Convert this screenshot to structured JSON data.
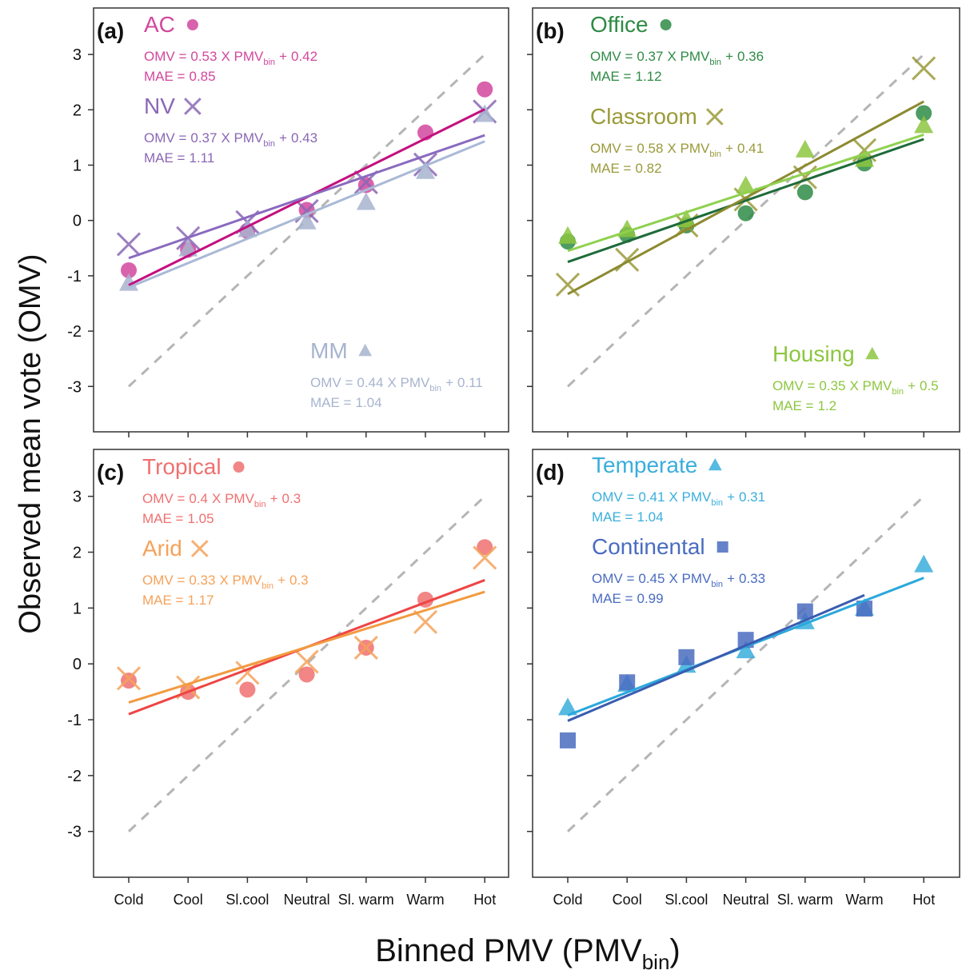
{
  "figure": {
    "ylabel": "Observed mean vote (OMV)",
    "xlabel": "Binned PMV (PMV",
    "xlabel_sub": "bin",
    "xlabel_end": ")",
    "equation": {
      "lhs": "OMV =",
      "times": "X PMV",
      "sub": "bin",
      "plus": "+",
      "mae": "MAE ="
    }
  },
  "chart_data": [
    {
      "type": "scatter",
      "title": "(a)",
      "categories": [
        "Cold",
        "Cool",
        "Sl.cool",
        "Neutral",
        "Sl. warm",
        "Warm",
        "Hot"
      ],
      "ylim": [
        -3.82,
        3.84
      ],
      "yticks": [
        -3,
        -2,
        -1,
        0,
        1,
        2,
        3
      ],
      "show_ytick_labels": true,
      "show_xtick_labels": false,
      "reference_line": {
        "values": [
          -3,
          3
        ],
        "color": "#b5b5b5"
      },
      "series": [
        {
          "name": "AC",
          "marker": "circle",
          "color": "#d2479d",
          "line_color": "#c4107f",
          "slope": 0.53,
          "intercept": 0.42,
          "mae": 0.85,
          "values": [
            -0.9,
            -0.53,
            -0.19,
            0.19,
            0.64,
            1.59,
            2.37
          ]
        },
        {
          "name": "NV",
          "marker": "x",
          "color": "#8a67b5",
          "line_color": "#8a6abf",
          "slope": 0.37,
          "intercept": 0.43,
          "mae": 1.11,
          "values": [
            -0.43,
            -0.32,
            -0.03,
            0.17,
            0.69,
            1.01,
            1.97
          ]
        },
        {
          "name": "MM",
          "marker": "triangle",
          "color": "#a7b4cf",
          "line_color": "#a9b9d6",
          "slope": 0.44,
          "intercept": 0.11,
          "mae": 1.04,
          "values": [
            -1.14,
            -0.52,
            -0.17,
            -0.03,
            0.32,
            0.88,
            1.91
          ]
        }
      ]
    },
    {
      "type": "scatter",
      "title": "(b)",
      "categories": [
        "Cold",
        "Cool",
        "Sl.cool",
        "Neutral",
        "Sl. warm",
        "Warm",
        "Hot"
      ],
      "ylim": [
        -3.82,
        3.84
      ],
      "yticks": [
        -3,
        -2,
        -1,
        0,
        1,
        2,
        3
      ],
      "show_ytick_labels": false,
      "show_xtick_labels": false,
      "reference_line": {
        "values": [
          -3,
          3
        ],
        "color": "#b5b5b5"
      },
      "series": [
        {
          "name": "Office",
          "marker": "circle",
          "color": "#2e8b45",
          "line_color": "#1e6b3a",
          "slope": 0.37,
          "intercept": 0.36,
          "mae": 1.12,
          "values": [
            -0.38,
            -0.26,
            -0.09,
            0.13,
            0.51,
            1.03,
            1.94
          ]
        },
        {
          "name": "Classroom",
          "marker": "x",
          "color": "#9a9a3a",
          "line_color": "#8c8a30",
          "slope": 0.58,
          "intercept": 0.41,
          "mae": 0.82,
          "values": [
            -1.16,
            -0.71,
            -0.09,
            0.38,
            0.78,
            1.27,
            2.75
          ]
        },
        {
          "name": "Housing",
          "marker": "triangle",
          "color": "#8dc63f",
          "line_color": "#8fd14f",
          "slope": 0.35,
          "intercept": 0.5,
          "mae": 1.2,
          "values": [
            -0.29,
            -0.17,
            0.01,
            0.62,
            1.27,
            1.1,
            1.71
          ]
        }
      ]
    },
    {
      "type": "scatter",
      "title": "(c)",
      "categories": [
        "Cold",
        "Cool",
        "Sl.cool",
        "Neutral",
        "Sl. warm",
        "Warm",
        "Hot"
      ],
      "ylim": [
        -3.82,
        3.84
      ],
      "yticks": [
        -3,
        -2,
        -1,
        0,
        1,
        2,
        3
      ],
      "show_ytick_labels": true,
      "show_xtick_labels": true,
      "reference_line": {
        "values": [
          -3,
          3
        ],
        "color": "#b5b5b5"
      },
      "series": [
        {
          "name": "Tropical",
          "marker": "circle",
          "color": "#f07070",
          "line_color": "#ee4444",
          "slope": 0.4,
          "intercept": 0.3,
          "mae": 1.05,
          "values": [
            -0.3,
            -0.5,
            -0.46,
            -0.19,
            0.29,
            1.15,
            2.09
          ]
        },
        {
          "name": "Arid",
          "marker": "x",
          "color": "#f5a25a",
          "line_color": "#f29a40",
          "slope": 0.33,
          "intercept": 0.3,
          "mae": 1.17,
          "values": [
            -0.26,
            -0.42,
            -0.16,
            0.04,
            0.29,
            0.75,
            1.9
          ]
        }
      ]
    },
    {
      "type": "scatter",
      "title": "(d)",
      "categories": [
        "Cold",
        "Cool",
        "Sl.cool",
        "Neutral",
        "Sl. warm",
        "Warm",
        "Hot"
      ],
      "ylim": [
        -3.82,
        3.84
      ],
      "yticks": [
        -3,
        -2,
        -1,
        0,
        1,
        2,
        3
      ],
      "show_ytick_labels": false,
      "show_xtick_labels": true,
      "reference_line": {
        "values": [
          -3,
          3
        ],
        "color": "#b5b5b5"
      },
      "series": [
        {
          "name": "Temperate",
          "marker": "triangle",
          "color": "#3aaedc",
          "line_color": "#2aa8dc",
          "slope": 0.41,
          "intercept": 0.31,
          "mae": 1.04,
          "values": [
            -0.79,
            -0.37,
            -0.03,
            0.23,
            0.75,
            0.99,
            1.77
          ]
        },
        {
          "name": "Continental",
          "marker": "square",
          "color": "#4a6cc0",
          "line_color": "#3a5cb0",
          "slope": 0.45,
          "intercept": 0.33,
          "mae": 0.99,
          "values": [
            -1.37,
            -0.33,
            0.12,
            0.43,
            0.94,
            0.99,
            null
          ]
        }
      ]
    }
  ]
}
